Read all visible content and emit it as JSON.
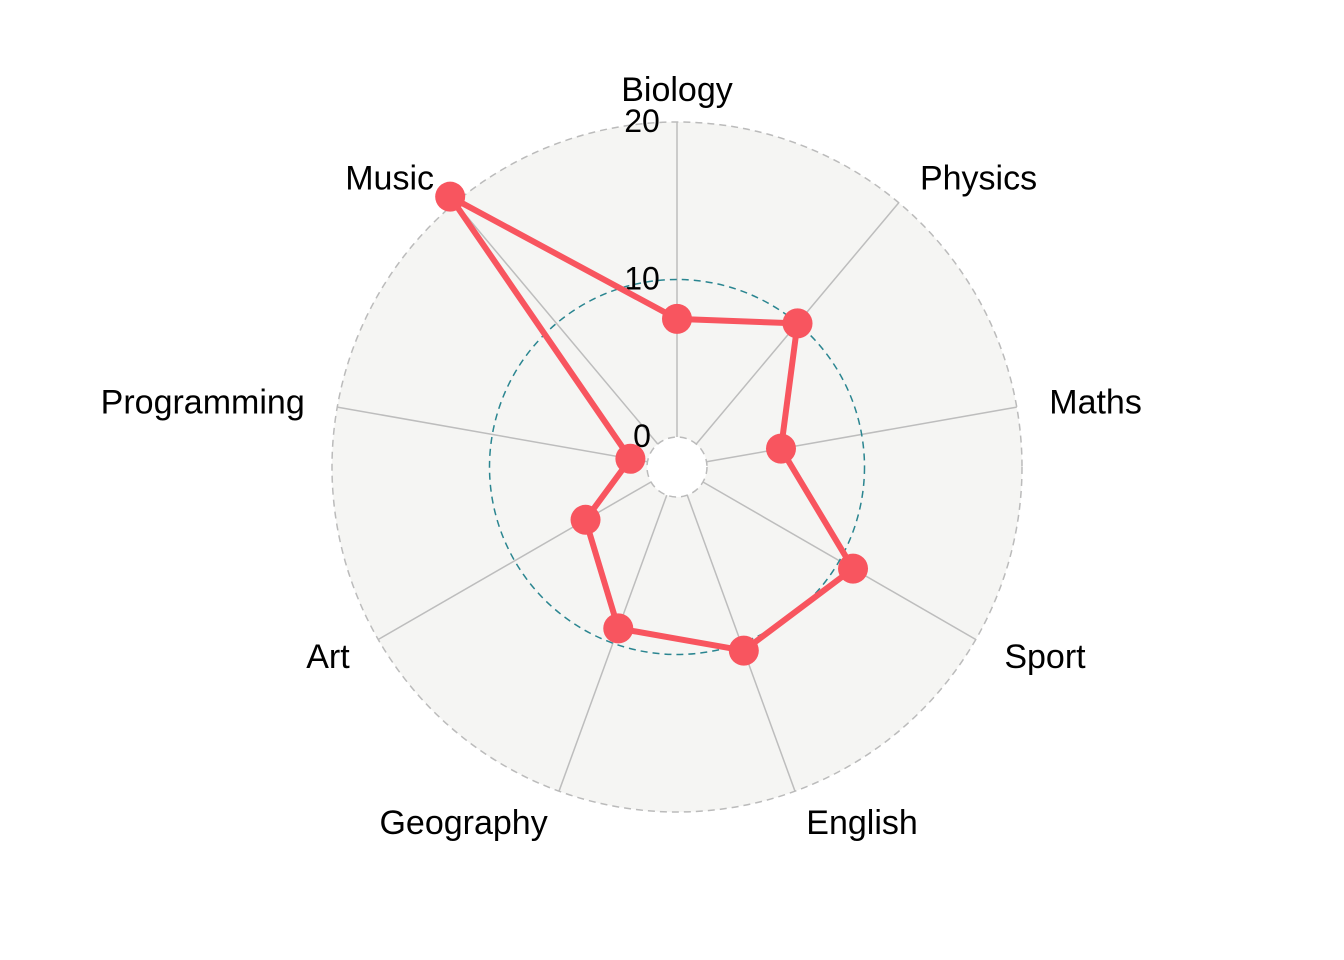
{
  "chart_data": {
    "type": "radar",
    "categories": [
      "Biology",
      "Physics",
      "Maths",
      "Sport",
      "English",
      "Geography",
      "Art",
      "Programming",
      "Music"
    ],
    "series": [
      {
        "values": [
          7.5,
          10,
          4.8,
          11,
          10.5,
          9,
          4.8,
          1.1,
          20.5
        ],
        "color": "#f8555f"
      }
    ],
    "ticks": [
      0,
      10,
      20
    ],
    "rlim": [
      0,
      20
    ],
    "grid_mid_color": "#2a8590",
    "grid_outer_color": "#bbbbbb",
    "panel_fill": "#f5f5f3"
  }
}
